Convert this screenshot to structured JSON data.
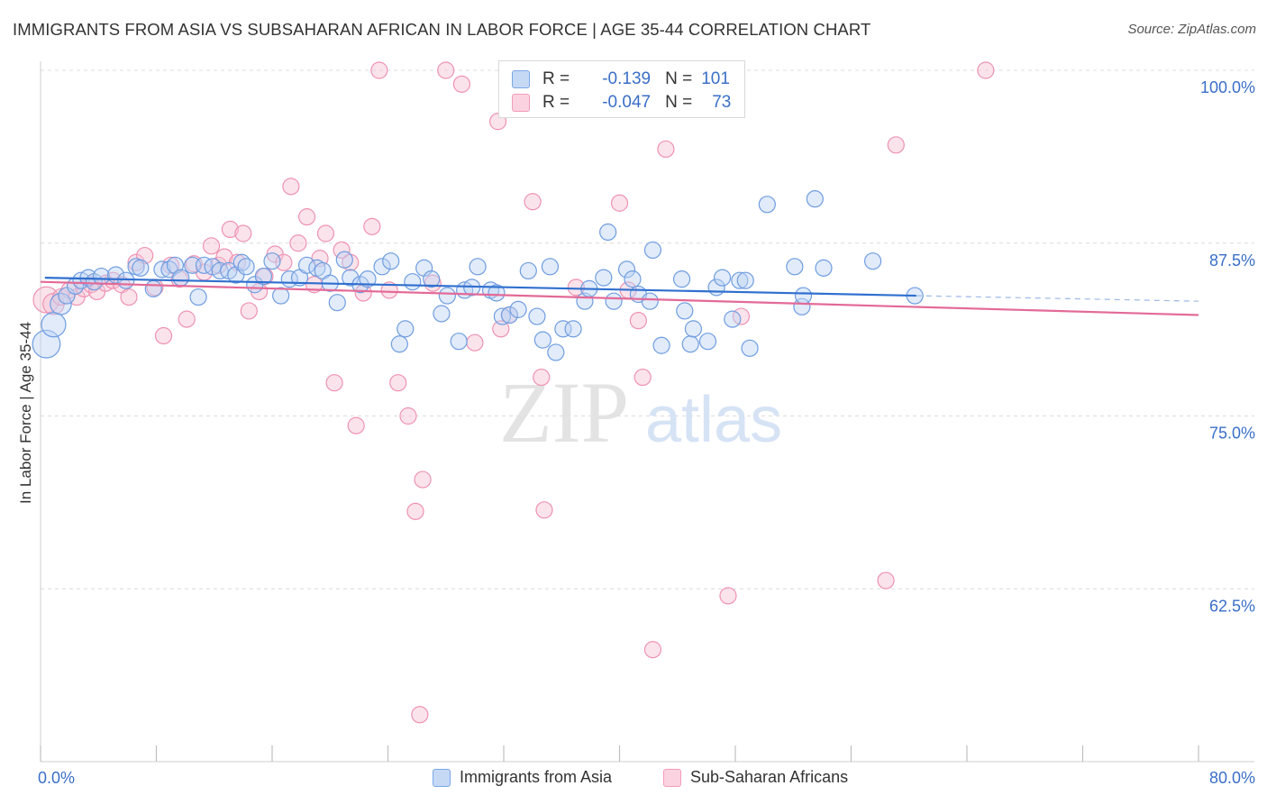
{
  "title": "IMMIGRANTS FROM ASIA VS SUBSAHARAN AFRICAN IN LABOR FORCE | AGE 35-44 CORRELATION CHART",
  "source": "Source: ZipAtlas.com",
  "watermark": {
    "zip": "ZIP",
    "atlas": "atlas"
  },
  "stats": [
    {
      "r_label": "R =",
      "r_value": "-0.139",
      "n_label": "N =",
      "n_value": "101"
    },
    {
      "r_label": "R =",
      "r_value": "-0.047",
      "n_label": "N =",
      "n_value": "73"
    }
  ],
  "chart_data": {
    "type": "scatter",
    "title": "IMMIGRANTS FROM ASIA VS SUBSAHARAN AFRICAN IN LABOR FORCE | AGE 35-44 CORRELATION CHART",
    "xlabel": "",
    "ylabel": "In Labor Force | Age 35-44",
    "xlim": [
      0,
      80
    ],
    "ylim": [
      50,
      100
    ],
    "x_tick_labels": [
      "0.0%",
      "80.0%"
    ],
    "y_ticks": [
      62.5,
      75.0,
      87.5,
      100.0
    ],
    "y_tick_labels": [
      "62.5%",
      "75.0%",
      "87.5%",
      "100.0%"
    ],
    "colors": {
      "asia": "#7ba7e8",
      "africa": "#f29bb8",
      "asia_line": "#2f6fcf",
      "africa_line": "#e36a97",
      "tick_label": "#3a6fc7"
    },
    "series": [
      {
        "name": "Immigrants from Asia",
        "trend": {
          "x": [
            0.3,
            60.5
          ],
          "y": [
            85.0,
            83.7
          ],
          "dash_to": [
            80.0,
            83.3
          ]
        },
        "points": [
          [
            0.4,
            80.2
          ],
          [
            0.9,
            81.6
          ],
          [
            1.4,
            83.1
          ],
          [
            1.8,
            83.7
          ],
          [
            2.4,
            84.4
          ],
          [
            2.8,
            84.8
          ],
          [
            3.3,
            85.0
          ],
          [
            3.7,
            84.7
          ],
          [
            4.2,
            85.1
          ],
          [
            5.2,
            85.2
          ],
          [
            5.9,
            84.8
          ],
          [
            6.6,
            85.8
          ],
          [
            6.9,
            85.7
          ],
          [
            7.8,
            84.2
          ],
          [
            8.4,
            85.6
          ],
          [
            8.9,
            85.6
          ],
          [
            9.3,
            85.9
          ],
          [
            9.7,
            85.0
          ],
          [
            10.5,
            85.9
          ],
          [
            10.9,
            83.6
          ],
          [
            11.3,
            85.9
          ],
          [
            11.9,
            85.8
          ],
          [
            12.4,
            85.5
          ],
          [
            13.0,
            85.5
          ],
          [
            13.5,
            85.2
          ],
          [
            13.9,
            86.1
          ],
          [
            14.2,
            85.8
          ],
          [
            14.8,
            84.5
          ],
          [
            15.4,
            85.1
          ],
          [
            16.0,
            86.2
          ],
          [
            16.6,
            83.7
          ],
          [
            17.2,
            84.9
          ],
          [
            17.9,
            85.0
          ],
          [
            18.4,
            85.9
          ],
          [
            19.1,
            85.7
          ],
          [
            19.5,
            85.5
          ],
          [
            20.0,
            84.6
          ],
          [
            20.5,
            83.2
          ],
          [
            21.0,
            86.3
          ],
          [
            21.4,
            85.0
          ],
          [
            22.1,
            84.5
          ],
          [
            22.6,
            84.9
          ],
          [
            23.6,
            85.8
          ],
          [
            24.2,
            86.2
          ],
          [
            24.8,
            80.2
          ],
          [
            25.2,
            81.3
          ],
          [
            25.7,
            84.7
          ],
          [
            26.5,
            85.7
          ],
          [
            27.0,
            84.9
          ],
          [
            27.7,
            82.4
          ],
          [
            28.1,
            83.7
          ],
          [
            28.9,
            80.4
          ],
          [
            29.3,
            84.1
          ],
          [
            29.8,
            84.3
          ],
          [
            30.2,
            85.8
          ],
          [
            31.1,
            84.1
          ],
          [
            31.5,
            83.9
          ],
          [
            31.9,
            82.2
          ],
          [
            32.4,
            82.3
          ],
          [
            33.0,
            82.7
          ],
          [
            33.7,
            85.5
          ],
          [
            34.3,
            82.2
          ],
          [
            34.7,
            80.5
          ],
          [
            35.2,
            85.8
          ],
          [
            35.6,
            79.6
          ],
          [
            36.1,
            81.3
          ],
          [
            36.8,
            81.3
          ],
          [
            37.6,
            83.3
          ],
          [
            37.9,
            84.2
          ],
          [
            38.9,
            85.0
          ],
          [
            39.2,
            88.3
          ],
          [
            39.6,
            83.3
          ],
          [
            40.5,
            85.6
          ],
          [
            40.9,
            84.9
          ],
          [
            41.3,
            83.8
          ],
          [
            42.1,
            83.3
          ],
          [
            42.3,
            87.0
          ],
          [
            42.9,
            80.1
          ],
          [
            44.3,
            84.9
          ],
          [
            44.5,
            82.6
          ],
          [
            44.9,
            80.2
          ],
          [
            45.1,
            81.3
          ],
          [
            46.1,
            80.4
          ],
          [
            46.7,
            84.3
          ],
          [
            47.1,
            85.0
          ],
          [
            47.8,
            82.0
          ],
          [
            48.3,
            84.8
          ],
          [
            48.7,
            84.8
          ],
          [
            49.0,
            79.9
          ],
          [
            50.2,
            90.3
          ],
          [
            52.1,
            85.8
          ],
          [
            52.6,
            82.9
          ],
          [
            52.7,
            83.7
          ],
          [
            53.5,
            90.7
          ],
          [
            54.1,
            85.7
          ],
          [
            57.5,
            86.2
          ],
          [
            60.4,
            83.7
          ]
        ],
        "sizes": {
          "0.4,80.2": 1.7,
          "0.9,81.6": 1.5,
          "1.4,83.1": 1.3
        }
      },
      {
        "name": "Sub-Saharan Africans",
        "trend": {
          "x": [
            0.0,
            80.0
          ],
          "y": [
            84.7,
            82.3
          ]
        },
        "points": [
          [
            0.4,
            83.4
          ],
          [
            0.9,
            83.1
          ],
          [
            1.4,
            83.6
          ],
          [
            2.0,
            84.1
          ],
          [
            2.5,
            83.6
          ],
          [
            3.0,
            84.2
          ],
          [
            3.5,
            84.5
          ],
          [
            3.9,
            84.0
          ],
          [
            4.5,
            84.6
          ],
          [
            5.0,
            84.8
          ],
          [
            5.6,
            84.5
          ],
          [
            6.1,
            83.6
          ],
          [
            6.6,
            86.1
          ],
          [
            7.2,
            86.6
          ],
          [
            7.9,
            84.3
          ],
          [
            8.5,
            80.8
          ],
          [
            9.0,
            85.9
          ],
          [
            9.6,
            84.9
          ],
          [
            10.1,
            82.0
          ],
          [
            10.6,
            86.0
          ],
          [
            11.3,
            85.4
          ],
          [
            11.8,
            87.3
          ],
          [
            12.3,
            85.9
          ],
          [
            12.7,
            86.5
          ],
          [
            13.1,
            88.5
          ],
          [
            13.6,
            86.1
          ],
          [
            14.0,
            88.2
          ],
          [
            14.4,
            82.6
          ],
          [
            15.1,
            84.0
          ],
          [
            15.5,
            85.1
          ],
          [
            16.2,
            86.7
          ],
          [
            16.8,
            86.1
          ],
          [
            17.3,
            91.6
          ],
          [
            17.8,
            87.5
          ],
          [
            18.4,
            89.4
          ],
          [
            18.9,
            84.5
          ],
          [
            19.3,
            86.4
          ],
          [
            19.7,
            88.2
          ],
          [
            20.3,
            77.4
          ],
          [
            20.8,
            87.0
          ],
          [
            21.4,
            86.1
          ],
          [
            21.8,
            74.3
          ],
          [
            22.3,
            83.9
          ],
          [
            22.9,
            88.7
          ],
          [
            23.4,
            100.0
          ],
          [
            24.1,
            84.1
          ],
          [
            24.7,
            77.4
          ],
          [
            25.4,
            75.0
          ],
          [
            25.9,
            68.1
          ],
          [
            26.4,
            70.4
          ],
          [
            27.1,
            84.6
          ],
          [
            28.0,
            100.0
          ],
          [
            29.1,
            99.0
          ],
          [
            30.0,
            80.3
          ],
          [
            31.6,
            96.3
          ],
          [
            31.8,
            81.3
          ],
          [
            32.4,
            82.3
          ],
          [
            32.9,
            100.0
          ],
          [
            34.0,
            90.5
          ],
          [
            34.6,
            77.8
          ],
          [
            34.8,
            68.2
          ],
          [
            37.0,
            84.3
          ],
          [
            40.0,
            90.4
          ],
          [
            40.6,
            84.1
          ],
          [
            41.3,
            81.9
          ],
          [
            41.6,
            77.8
          ],
          [
            42.3,
            58.1
          ],
          [
            43.2,
            94.3
          ],
          [
            47.5,
            62.0
          ],
          [
            48.4,
            82.2
          ],
          [
            58.4,
            63.1
          ],
          [
            59.1,
            94.6
          ],
          [
            65.3,
            100.0
          ],
          [
            26.2,
            53.4
          ]
        ],
        "sizes": {
          "0.4,83.4": 1.6,
          "0.9,83.1": 1.3
        }
      }
    ]
  },
  "legend": [
    {
      "label": "Immigrants from Asia"
    },
    {
      "label": "Sub-Saharan Africans"
    }
  ]
}
